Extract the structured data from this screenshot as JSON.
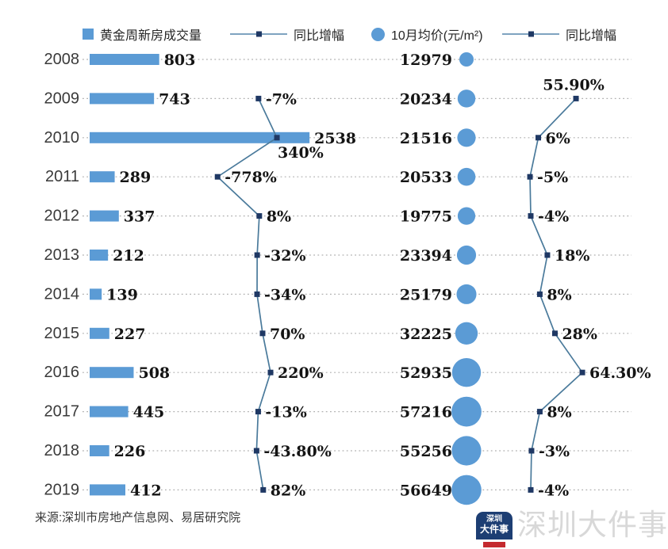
{
  "legend": {
    "items": [
      {
        "label": "黄金周新房成交量",
        "swatch": "bar"
      },
      {
        "label": "同比增幅",
        "swatch": "line"
      },
      {
        "label": "10月均价(元/m²)",
        "swatch": "bubble"
      },
      {
        "label": "同比增幅",
        "swatch": "line"
      }
    ]
  },
  "chart_data": {
    "type": "bar",
    "orientation": "horizontal",
    "grid": "dotted-horizontal",
    "legend_position": "top",
    "categories": [
      "2008",
      "2009",
      "2010",
      "2011",
      "2012",
      "2013",
      "2014",
      "2015",
      "2016",
      "2017",
      "2018",
      "2019"
    ],
    "series": [
      {
        "name": "黄金周新房成交量",
        "type": "bar",
        "values": [
          803,
          743,
          2538,
          289,
          337,
          212,
          139,
          227,
          508,
          445,
          226,
          412
        ]
      },
      {
        "name": "同比增幅",
        "type": "line",
        "values": [
          null,
          -7,
          340,
          -778,
          8,
          -32,
          -34,
          70,
          220,
          -13,
          -43.8,
          82
        ],
        "labels": [
          null,
          "-7%",
          "340%",
          "-778%",
          "8%",
          "-32%",
          "-34%",
          "70%",
          "220%",
          "-13%",
          "-43.80%",
          "82%"
        ]
      },
      {
        "name": "10月均价(元/m²)",
        "type": "bubble",
        "values": [
          12979,
          20234,
          21516,
          20533,
          19775,
          23394,
          25179,
          32225,
          52935,
          57216,
          55256,
          56649
        ]
      },
      {
        "name": "同比增幅",
        "type": "line",
        "values": [
          null,
          55.9,
          6,
          -5,
          -4,
          18,
          8,
          28,
          64.3,
          8,
          -3,
          -4
        ],
        "labels": [
          null,
          "55.90%",
          "6%",
          "-5%",
          "-4%",
          "18%",
          "8%",
          "28%",
          "64.30%",
          "8%",
          "-3%",
          "-4%"
        ]
      }
    ]
  },
  "source": "来源:深圳市房地产信息网、易居研究院",
  "watermark": "深圳大件事",
  "logo": {
    "line1": "深圳",
    "line2": "大件事"
  },
  "colors": {
    "bar": "#5B9BD5",
    "bubble": "#5B9BD5",
    "line": "#4A7A9B",
    "marker": "#1F3864",
    "grid": "#AFAFAF",
    "value_label": "#141414",
    "year_label": "#3A3A3A",
    "watermark": "#D8D8D8",
    "logo_blue": "#1D3E73",
    "logo_red": "#C4292E"
  }
}
